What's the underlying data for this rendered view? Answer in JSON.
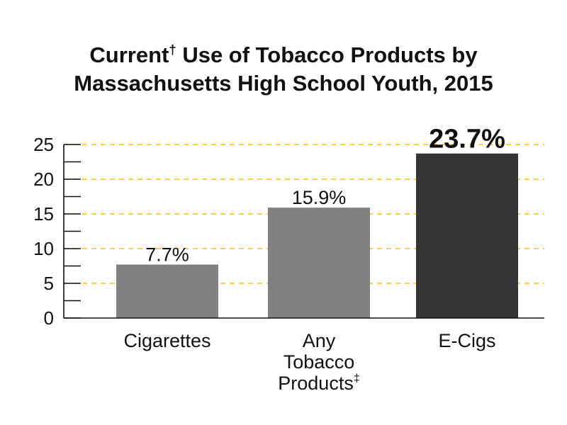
{
  "title": {
    "line1_prefix": "Current",
    "line1_mark": "†",
    "line1_suffix": " Use of Tobacco Products by",
    "line2": "Massachusetts High School Youth, 2015"
  },
  "chart_data": {
    "type": "bar",
    "categories": [
      {
        "lines": [
          "Cigarettes"
        ],
        "mark": ""
      },
      {
        "lines": [
          "Any",
          "Tobacco",
          "Products"
        ],
        "mark": "‡"
      },
      {
        "lines": [
          "E-Cigs"
        ],
        "mark": ""
      }
    ],
    "values": [
      7.7,
      15.9,
      23.7
    ],
    "value_labels": [
      "7.7%",
      "15.9%",
      "23.7%"
    ],
    "emphasized_index": 2,
    "ylim": [
      0,
      25
    ],
    "yticks": [
      0,
      5,
      10,
      15,
      20,
      25
    ],
    "minor_tick_step": 2.5,
    "grid": true,
    "xlabel": "",
    "ylabel": "",
    "colors": {
      "bar": "#808080",
      "bar_emphasis": "#343434",
      "grid": "#f2c318",
      "axis": "#111111"
    }
  }
}
